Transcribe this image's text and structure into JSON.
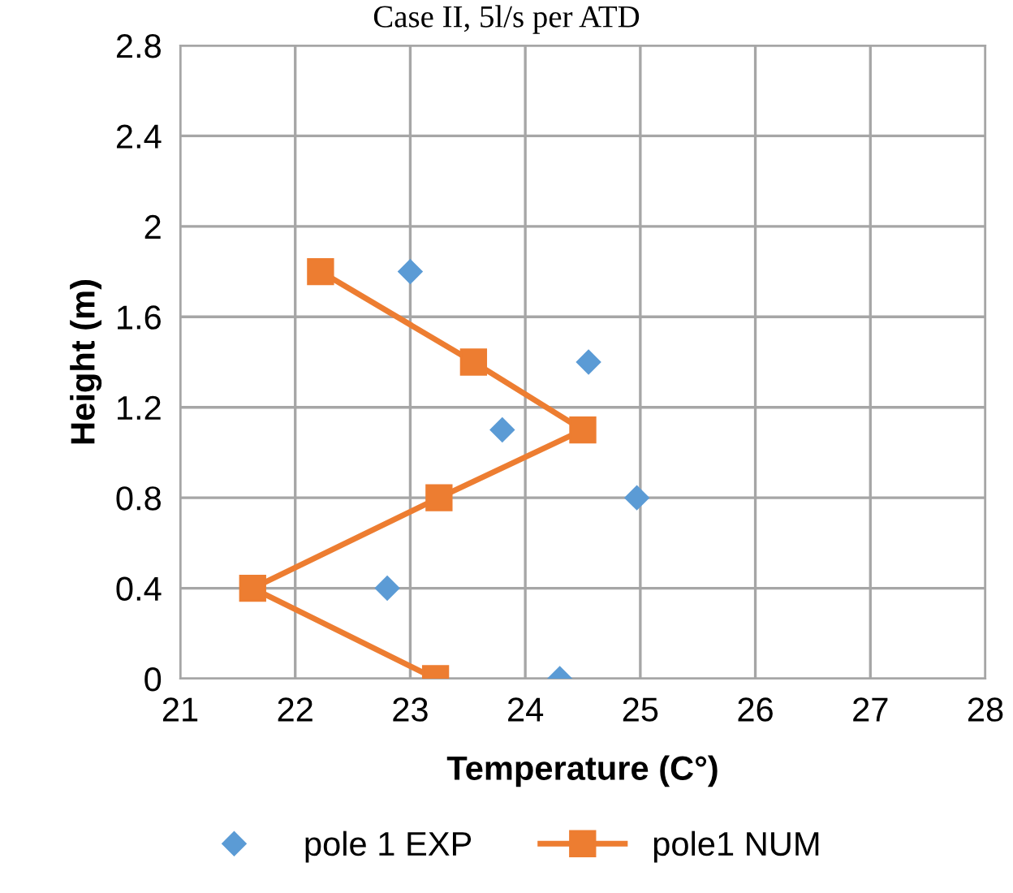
{
  "chart_data": {
    "type": "scatter",
    "title": "Case II, 5l/s per ATD",
    "xlabel": "Temperature (C°)",
    "ylabel": "Height (m)",
    "xlim": [
      21,
      28
    ],
    "xticks": [
      21,
      22,
      23,
      24,
      25,
      26,
      27,
      28
    ],
    "ylim": [
      0,
      2.8
    ],
    "yticks": [
      0,
      0.4,
      0.8,
      1.2,
      1.6,
      2,
      2.4,
      2.8
    ],
    "grid": true,
    "legend": "bottom",
    "series": [
      {
        "name": "pole 1 EXP",
        "marker": "diamond",
        "color": "#5b9bd5",
        "x": [
          23.0,
          24.55,
          23.8,
          24.97,
          22.8,
          24.3
        ],
        "values": [
          1.8,
          1.4,
          1.1,
          0.8,
          0.4,
          0
        ]
      },
      {
        "name": "pole1 NUM",
        "type": "line",
        "marker": "square",
        "line_style": "solid",
        "color": "#ed7d31",
        "x": [
          22.22,
          23.55,
          24.5,
          23.25,
          21.63,
          23.22
        ],
        "values": [
          1.8,
          1.4,
          1.1,
          0.8,
          0.4,
          0
        ]
      }
    ]
  }
}
